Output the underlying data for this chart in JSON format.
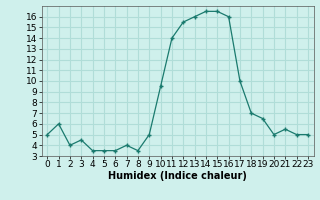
{
  "x": [
    0,
    1,
    2,
    3,
    4,
    5,
    6,
    7,
    8,
    9,
    10,
    11,
    12,
    13,
    14,
    15,
    16,
    17,
    18,
    19,
    20,
    21,
    22,
    23
  ],
  "y": [
    5,
    6,
    4,
    4.5,
    3.5,
    3.5,
    3.5,
    4,
    3.5,
    5,
    9.5,
    14,
    15.5,
    16,
    16.5,
    16.5,
    16,
    10,
    7,
    6.5,
    5,
    5.5,
    5,
    5
  ],
  "xlabel": "Humidex (Indice chaleur)",
  "ylim": [
    3,
    17
  ],
  "xlim": [
    -0.5,
    23.5
  ],
  "yticks": [
    3,
    4,
    5,
    6,
    7,
    8,
    9,
    10,
    11,
    12,
    13,
    14,
    15,
    16
  ],
  "xticks": [
    0,
    1,
    2,
    3,
    4,
    5,
    6,
    7,
    8,
    9,
    10,
    11,
    12,
    13,
    14,
    15,
    16,
    17,
    18,
    19,
    20,
    21,
    22,
    23
  ],
  "line_color": "#1a7a6e",
  "marker": "+",
  "bg_color": "#cff0ec",
  "grid_color": "#b0ddd8",
  "xlabel_fontsize": 7,
  "tick_fontsize": 6.5
}
